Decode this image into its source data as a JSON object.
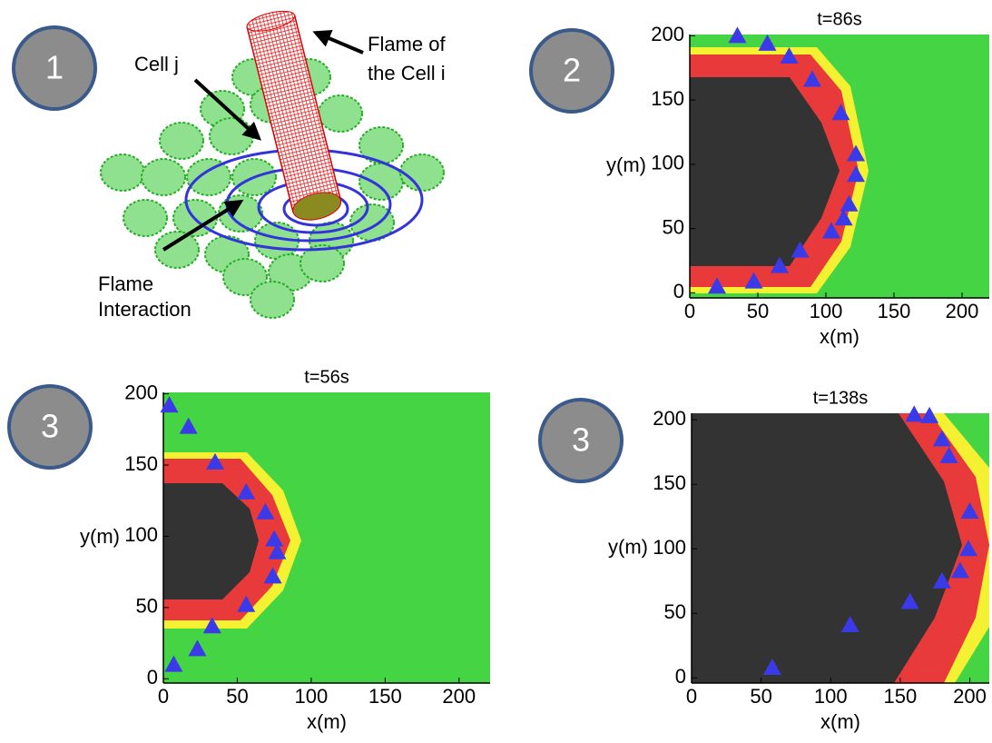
{
  "badges": [
    "1",
    "2",
    "3",
    "3"
  ],
  "diagram": {
    "cell_label": "Cell j",
    "flame_label": [
      "Flame of",
      "the Cell i"
    ],
    "interaction_label": [
      "Flame",
      "Interaction"
    ]
  },
  "chart_data": [
    {
      "type": "scatter",
      "title": "t=86s",
      "x_label": "x(m)",
      "y_label": "y(m)",
      "xlim": [
        0,
        220
      ],
      "ylim": [
        -4,
        201
      ],
      "xticks": [
        0,
        50,
        100,
        150,
        200
      ],
      "yticks": [
        0,
        50,
        100,
        150,
        200
      ],
      "marker_color": "#3a3ae8",
      "x": [
        35,
        57,
        73,
        90,
        111,
        122,
        122,
        117,
        113,
        104,
        81,
        66,
        47,
        20
      ],
      "y": [
        200,
        194,
        184,
        166,
        140,
        108,
        92,
        69,
        58,
        48,
        33,
        21,
        9,
        5
      ]
    },
    {
      "type": "scatter",
      "title": "t=56s",
      "x_label": "x(m)",
      "y_label": "y(m)",
      "xlim": [
        0,
        221
      ],
      "ylim": [
        -3,
        201
      ],
      "xticks": [
        0,
        50,
        100,
        150,
        200
      ],
      "yticks": [
        0,
        50,
        100,
        150,
        200
      ],
      "marker_color": "#3a3ae8",
      "x": [
        4,
        17,
        35,
        56,
        69,
        75,
        77,
        74,
        56,
        33,
        23,
        7
      ],
      "y": [
        192,
        177,
        152,
        131,
        117,
        98,
        89,
        72,
        52,
        37,
        21,
        10
      ]
    },
    {
      "type": "scatter",
      "title": "t=138s",
      "x_label": "x(m)",
      "y_label": "y(m)",
      "xlim": [
        0,
        214
      ],
      "ylim": [
        -4,
        205
      ],
      "xticks": [
        0,
        50,
        100,
        150,
        200
      ],
      "yticks": [
        0,
        50,
        100,
        150,
        200
      ],
      "marker_color": "#3a3ae8",
      "x": [
        160,
        171,
        180,
        185,
        200,
        199,
        193,
        180,
        157,
        114,
        58
      ],
      "y": [
        204,
        203,
        185,
        172,
        129,
        100,
        83,
        75,
        59,
        41,
        8
      ]
    }
  ]
}
